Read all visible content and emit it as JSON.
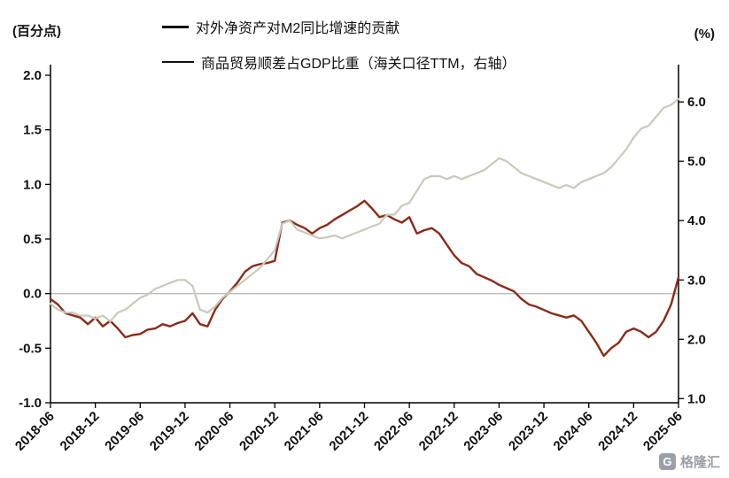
{
  "watermark": {
    "text": "格隆汇",
    "logo_letter": "G"
  },
  "chart_data": {
    "type": "line",
    "title": "",
    "x_labels": [
      "2018-06",
      "2018-12",
      "2019-06",
      "2019-12",
      "2020-06",
      "2020-12",
      "2021-06",
      "2021-12",
      "2022-06",
      "2022-12",
      "2023-06",
      "2023-12",
      "2024-06",
      "2024-12",
      "2025-06"
    ],
    "x_tick_every": 6,
    "left_axis": {
      "label": "(百分点)",
      "min": -1.0,
      "max": 2.0,
      "ticks": [
        2.0,
        1.5,
        1.0,
        0.5,
        0.0,
        -0.5,
        -1.0
      ]
    },
    "right_axis": {
      "label": "(%)",
      "min": 0.93,
      "max": 6.45,
      "ticks": [
        6.0,
        5.0,
        4.0,
        3.0,
        2.0,
        1.0
      ]
    },
    "zero_line": 0.0,
    "grid": false,
    "legend_position": "top",
    "series": [
      {
        "name": "对外净资产对M2同比增速的贡献",
        "axis": "left",
        "color": "#8C2A17",
        "width": 2.4,
        "values": [
          -0.05,
          -0.1,
          -0.18,
          -0.2,
          -0.22,
          -0.28,
          -0.22,
          -0.3,
          -0.25,
          -0.32,
          -0.4,
          -0.38,
          -0.37,
          -0.33,
          -0.32,
          -0.28,
          -0.3,
          -0.27,
          -0.25,
          -0.18,
          -0.28,
          -0.3,
          -0.15,
          -0.05,
          0.02,
          0.1,
          0.2,
          0.25,
          0.27,
          0.28,
          0.3,
          0.65,
          0.67,
          0.63,
          0.6,
          0.55,
          0.6,
          0.63,
          0.68,
          0.72,
          0.76,
          0.8,
          0.85,
          0.78,
          0.7,
          0.72,
          0.68,
          0.65,
          0.7,
          0.55,
          0.58,
          0.6,
          0.55,
          0.45,
          0.35,
          0.28,
          0.25,
          0.18,
          0.15,
          0.12,
          0.08,
          0.05,
          0.02,
          -0.05,
          -0.1,
          -0.12,
          -0.15,
          -0.18,
          -0.2,
          -0.22,
          -0.2,
          -0.25,
          -0.35,
          -0.45,
          -0.57,
          -0.5,
          -0.45,
          -0.35,
          -0.32,
          -0.35,
          -0.4,
          -0.35,
          -0.25,
          -0.1,
          0.15
        ]
      },
      {
        "name": "商品贸易顺差占GDP比重（海关口径TTM，右轴）",
        "axis": "right",
        "color": "#C9C9BC",
        "width": 2.2,
        "values": [
          2.6,
          2.5,
          2.45,
          2.45,
          2.4,
          2.4,
          2.35,
          2.4,
          2.3,
          2.45,
          2.5,
          2.6,
          2.7,
          2.75,
          2.85,
          2.9,
          2.95,
          3.0,
          3.0,
          2.9,
          2.5,
          2.45,
          2.55,
          2.7,
          2.8,
          2.9,
          3.0,
          3.1,
          3.2,
          3.35,
          3.5,
          3.95,
          4.0,
          3.85,
          3.8,
          3.75,
          3.7,
          3.72,
          3.75,
          3.7,
          3.75,
          3.8,
          3.85,
          3.9,
          3.95,
          4.1,
          4.1,
          4.25,
          4.3,
          4.5,
          4.7,
          4.75,
          4.75,
          4.7,
          4.75,
          4.7,
          4.75,
          4.8,
          4.85,
          4.95,
          5.05,
          5.0,
          4.9,
          4.8,
          4.75,
          4.7,
          4.65,
          4.6,
          4.55,
          4.6,
          4.55,
          4.65,
          4.7,
          4.75,
          4.8,
          4.9,
          5.05,
          5.2,
          5.4,
          5.55,
          5.6,
          5.75,
          5.9,
          5.95,
          6.05
        ]
      }
    ]
  }
}
